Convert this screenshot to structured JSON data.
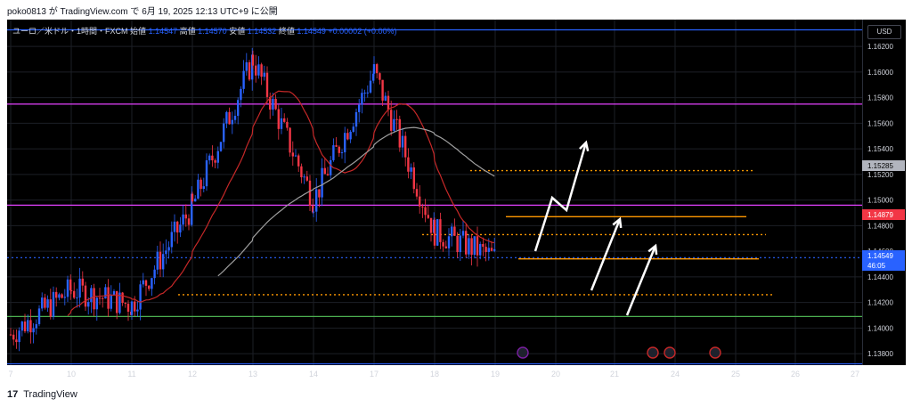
{
  "header": {
    "publisher_line": "poko0813 が TradingView.com で 6月 19, 2025 12:13 UTC+9 に公開"
  },
  "legend": {
    "symbol": "ユーロ／米ドル・1時間・FXCM",
    "open_label": "始値",
    "open_value": "1.14547",
    "high_label": "高値",
    "high_value": "1.14570",
    "low_label": "安値",
    "low_value": "1.14532",
    "close_label": "終値",
    "close_value": "1.14549",
    "change": "+0.00002 (+0.00%)"
  },
  "currency_button": "USD",
  "footer": {
    "logo_text": "17",
    "brand": "TradingView"
  },
  "colors": {
    "bg": "#000000",
    "up": "#2962ff",
    "down": "#f23645",
    "ma_fast": "#c62828",
    "ma_slow": "#9e9e9e",
    "orange": "#ff9800",
    "green": "#4caf50",
    "magenta": "#e040fb",
    "blue_line": "#2962ff"
  },
  "chart_data": {
    "type": "candlestick",
    "symbol": "EURUSD",
    "timeframe": "1h",
    "ylim": [
      1.1371,
      1.1641
    ],
    "x_ticks": [
      "7",
      "10",
      "11",
      "12",
      "13",
      "14",
      "17",
      "18",
      "19",
      "20",
      "21",
      "24",
      "25",
      "26",
      "27"
    ],
    "y_ticks": [
      "1.16200",
      "1.16000",
      "1.15800",
      "1.15600",
      "1.15400",
      "1.15200",
      "1.15000",
      "1.14800",
      "1.14600",
      "1.14400",
      "1.14200",
      "1.14000",
      "1.13800"
    ],
    "candle_path_approx": [
      {
        "x": "7",
        "price": 1.1395
      },
      {
        "x": "10",
        "price": 1.143
      },
      {
        "x": "11",
        "price": 1.1418
      },
      {
        "x": "12",
        "price": 1.1495
      },
      {
        "x": "13",
        "price": 1.161
      },
      {
        "x": "14",
        "price": 1.15
      },
      {
        "x": "17",
        "price": 1.16
      },
      {
        "x": "18",
        "price": 1.1475
      },
      {
        "x": "19",
        "price": 1.1455
      }
    ],
    "price_labels": [
      {
        "value": "1.15285",
        "bg": "#b2b5be",
        "fg": "#000000"
      },
      {
        "value": "1.14879",
        "bg": "#f23645",
        "fg": "#ffffff"
      },
      {
        "value": "1.14549",
        "bg": "#2962ff",
        "fg": "#ffffff"
      },
      {
        "value": "46:05",
        "bg": "#2962ff",
        "fg": "#ffffff"
      }
    ],
    "horizontal_lines": [
      {
        "price": 1.1633,
        "color": "#2962ff",
        "style": "solid"
      },
      {
        "price": 1.1575,
        "color": "#e040fb",
        "style": "solid"
      },
      {
        "price": 1.1496,
        "color": "#e040fb",
        "style": "solid"
      },
      {
        "price": 1.1455,
        "color": "#2962ff",
        "style": "dotted"
      },
      {
        "price": 1.1409,
        "color": "#4caf50",
        "style": "solid"
      },
      {
        "price": 1.1372,
        "color": "#2962ff",
        "style": "solid"
      }
    ],
    "level_segments": [
      {
        "price": 1.1523,
        "color": "#ff9800",
        "style": "dotted"
      },
      {
        "price": 1.1487,
        "color": "#ff9800",
        "style": "solid"
      },
      {
        "price": 1.1473,
        "color": "#ff9800",
        "style": "dotted"
      },
      {
        "price": 1.1454,
        "color": "#ff9800",
        "style": "solid"
      },
      {
        "price": 1.1426,
        "color": "#ff9800",
        "style": "dotted"
      }
    ]
  }
}
